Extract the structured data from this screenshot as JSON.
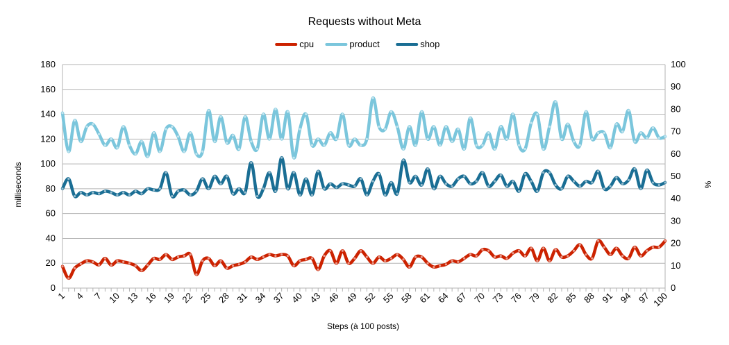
{
  "chart_data": {
    "type": "line",
    "title": "Requests without Meta",
    "xlabel": "Steps (à 100 posts)",
    "ylabel": "milliseconds",
    "y2label": "%",
    "ylim": [
      0,
      180
    ],
    "y2lim": [
      0,
      100
    ],
    "yticks": [
      0,
      20,
      40,
      60,
      80,
      100,
      120,
      140,
      160,
      180
    ],
    "y2ticks": [
      0,
      10,
      20,
      30,
      40,
      50,
      60,
      70,
      80,
      90,
      100
    ],
    "grid": "horizontal",
    "legend_position": "top",
    "x": [
      1,
      2,
      3,
      4,
      5,
      6,
      7,
      8,
      9,
      10,
      11,
      12,
      13,
      14,
      15,
      16,
      17,
      18,
      19,
      20,
      21,
      22,
      23,
      24,
      25,
      26,
      27,
      28,
      29,
      30,
      31,
      32,
      33,
      34,
      35,
      36,
      37,
      38,
      39,
      40,
      41,
      42,
      43,
      44,
      45,
      46,
      47,
      48,
      49,
      50,
      51,
      52,
      53,
      54,
      55,
      56,
      57,
      58,
      59,
      60,
      61,
      62,
      63,
      64,
      65,
      66,
      67,
      68,
      69,
      70,
      71,
      72,
      73,
      74,
      75,
      76,
      77,
      78,
      79,
      80,
      81,
      82,
      83,
      84,
      85,
      86,
      87,
      88,
      89,
      90,
      91,
      92,
      93,
      94,
      95,
      96,
      97,
      98,
      99,
      100
    ],
    "xtick_labels": [
      "1",
      "4",
      "7",
      "10",
      "13",
      "16",
      "19",
      "22",
      "25",
      "28",
      "31",
      "34",
      "37",
      "40",
      "43",
      "46",
      "49",
      "52",
      "55",
      "58",
      "61",
      "64",
      "67",
      "70",
      "73",
      "76",
      "79",
      "82",
      "85",
      "88",
      "91",
      "94",
      "97",
      "100"
    ],
    "series": [
      {
        "name": "cpu",
        "axis": "right",
        "color": "#cc2200",
        "values": [
          9.7,
          4.4,
          8.9,
          10.8,
          12.2,
          11.7,
          10.4,
          13.3,
          10.3,
          12.2,
          11.7,
          11.1,
          10.0,
          7.8,
          10.3,
          13.3,
          12.8,
          15.0,
          12.8,
          13.9,
          14.4,
          15.0,
          6.1,
          12.2,
          13.3,
          10.0,
          12.2,
          8.9,
          10.0,
          10.6,
          11.7,
          13.9,
          12.8,
          13.9,
          15.0,
          14.4,
          15.0,
          14.4,
          10.0,
          12.2,
          12.8,
          13.3,
          8.3,
          14.4,
          16.7,
          11.1,
          16.7,
          11.1,
          13.3,
          16.7,
          13.9,
          11.1,
          13.9,
          12.2,
          13.3,
          15.0,
          12.8,
          9.4,
          13.9,
          13.9,
          11.1,
          9.4,
          10.0,
          10.6,
          12.2,
          11.7,
          13.3,
          15.0,
          14.4,
          17.2,
          16.7,
          13.9,
          14.4,
          13.3,
          15.6,
          16.7,
          14.4,
          17.8,
          12.2,
          17.8,
          12.2,
          17.2,
          13.9,
          14.4,
          16.7,
          19.4,
          15.0,
          13.3,
          21.1,
          18.3,
          15.0,
          17.8,
          14.4,
          13.3,
          18.3,
          14.4,
          16.7,
          18.3,
          18.3,
          21.1
        ]
      },
      {
        "name": "product",
        "axis": "left",
        "color": "#7bc6dc",
        "values": [
          141,
          110,
          135,
          118,
          130,
          132,
          124,
          115,
          120,
          113,
          130,
          115,
          108,
          118,
          106,
          125,
          110,
          128,
          130,
          122,
          110,
          125,
          108,
          110,
          143,
          118,
          138,
          117,
          123,
          112,
          138,
          118,
          112,
          140,
          120,
          144,
          120,
          142,
          105,
          128,
          140,
          115,
          120,
          115,
          125,
          120,
          140,
          115,
          120,
          115,
          120,
          153,
          130,
          128,
          142,
          130,
          112,
          130,
          115,
          142,
          120,
          130,
          115,
          130,
          118,
          128,
          112,
          137,
          115,
          115,
          125,
          112,
          130,
          120,
          140,
          115,
          112,
          133,
          140,
          112,
          130,
          150,
          120,
          132,
          118,
          115,
          142,
          120,
          125,
          125,
          113,
          132,
          126,
          143,
          118,
          125,
          121,
          129,
          121,
          122
        ]
      },
      {
        "name": "shop",
        "axis": "left",
        "color": "#1a6e94",
        "values": [
          80,
          88,
          74,
          77,
          75,
          77,
          76,
          78,
          77,
          75,
          77,
          75,
          78,
          76,
          80,
          79,
          80,
          93,
          74,
          78,
          79,
          75,
          78,
          88,
          80,
          90,
          84,
          90,
          76,
          80,
          77,
          101,
          74,
          80,
          93,
          78,
          105,
          80,
          93,
          75,
          88,
          75,
          94,
          80,
          84,
          81,
          84,
          83,
          82,
          88,
          75,
          86,
          92,
          75,
          85,
          76,
          103,
          85,
          90,
          83,
          96,
          80,
          90,
          84,
          82,
          88,
          90,
          84,
          86,
          93,
          82,
          86,
          91,
          82,
          86,
          78,
          92,
          86,
          78,
          93,
          93,
          83,
          80,
          90,
          86,
          82,
          86,
          85,
          94,
          80,
          82,
          89,
          84,
          87,
          96,
          80,
          95,
          85,
          83,
          85
        ]
      }
    ]
  }
}
